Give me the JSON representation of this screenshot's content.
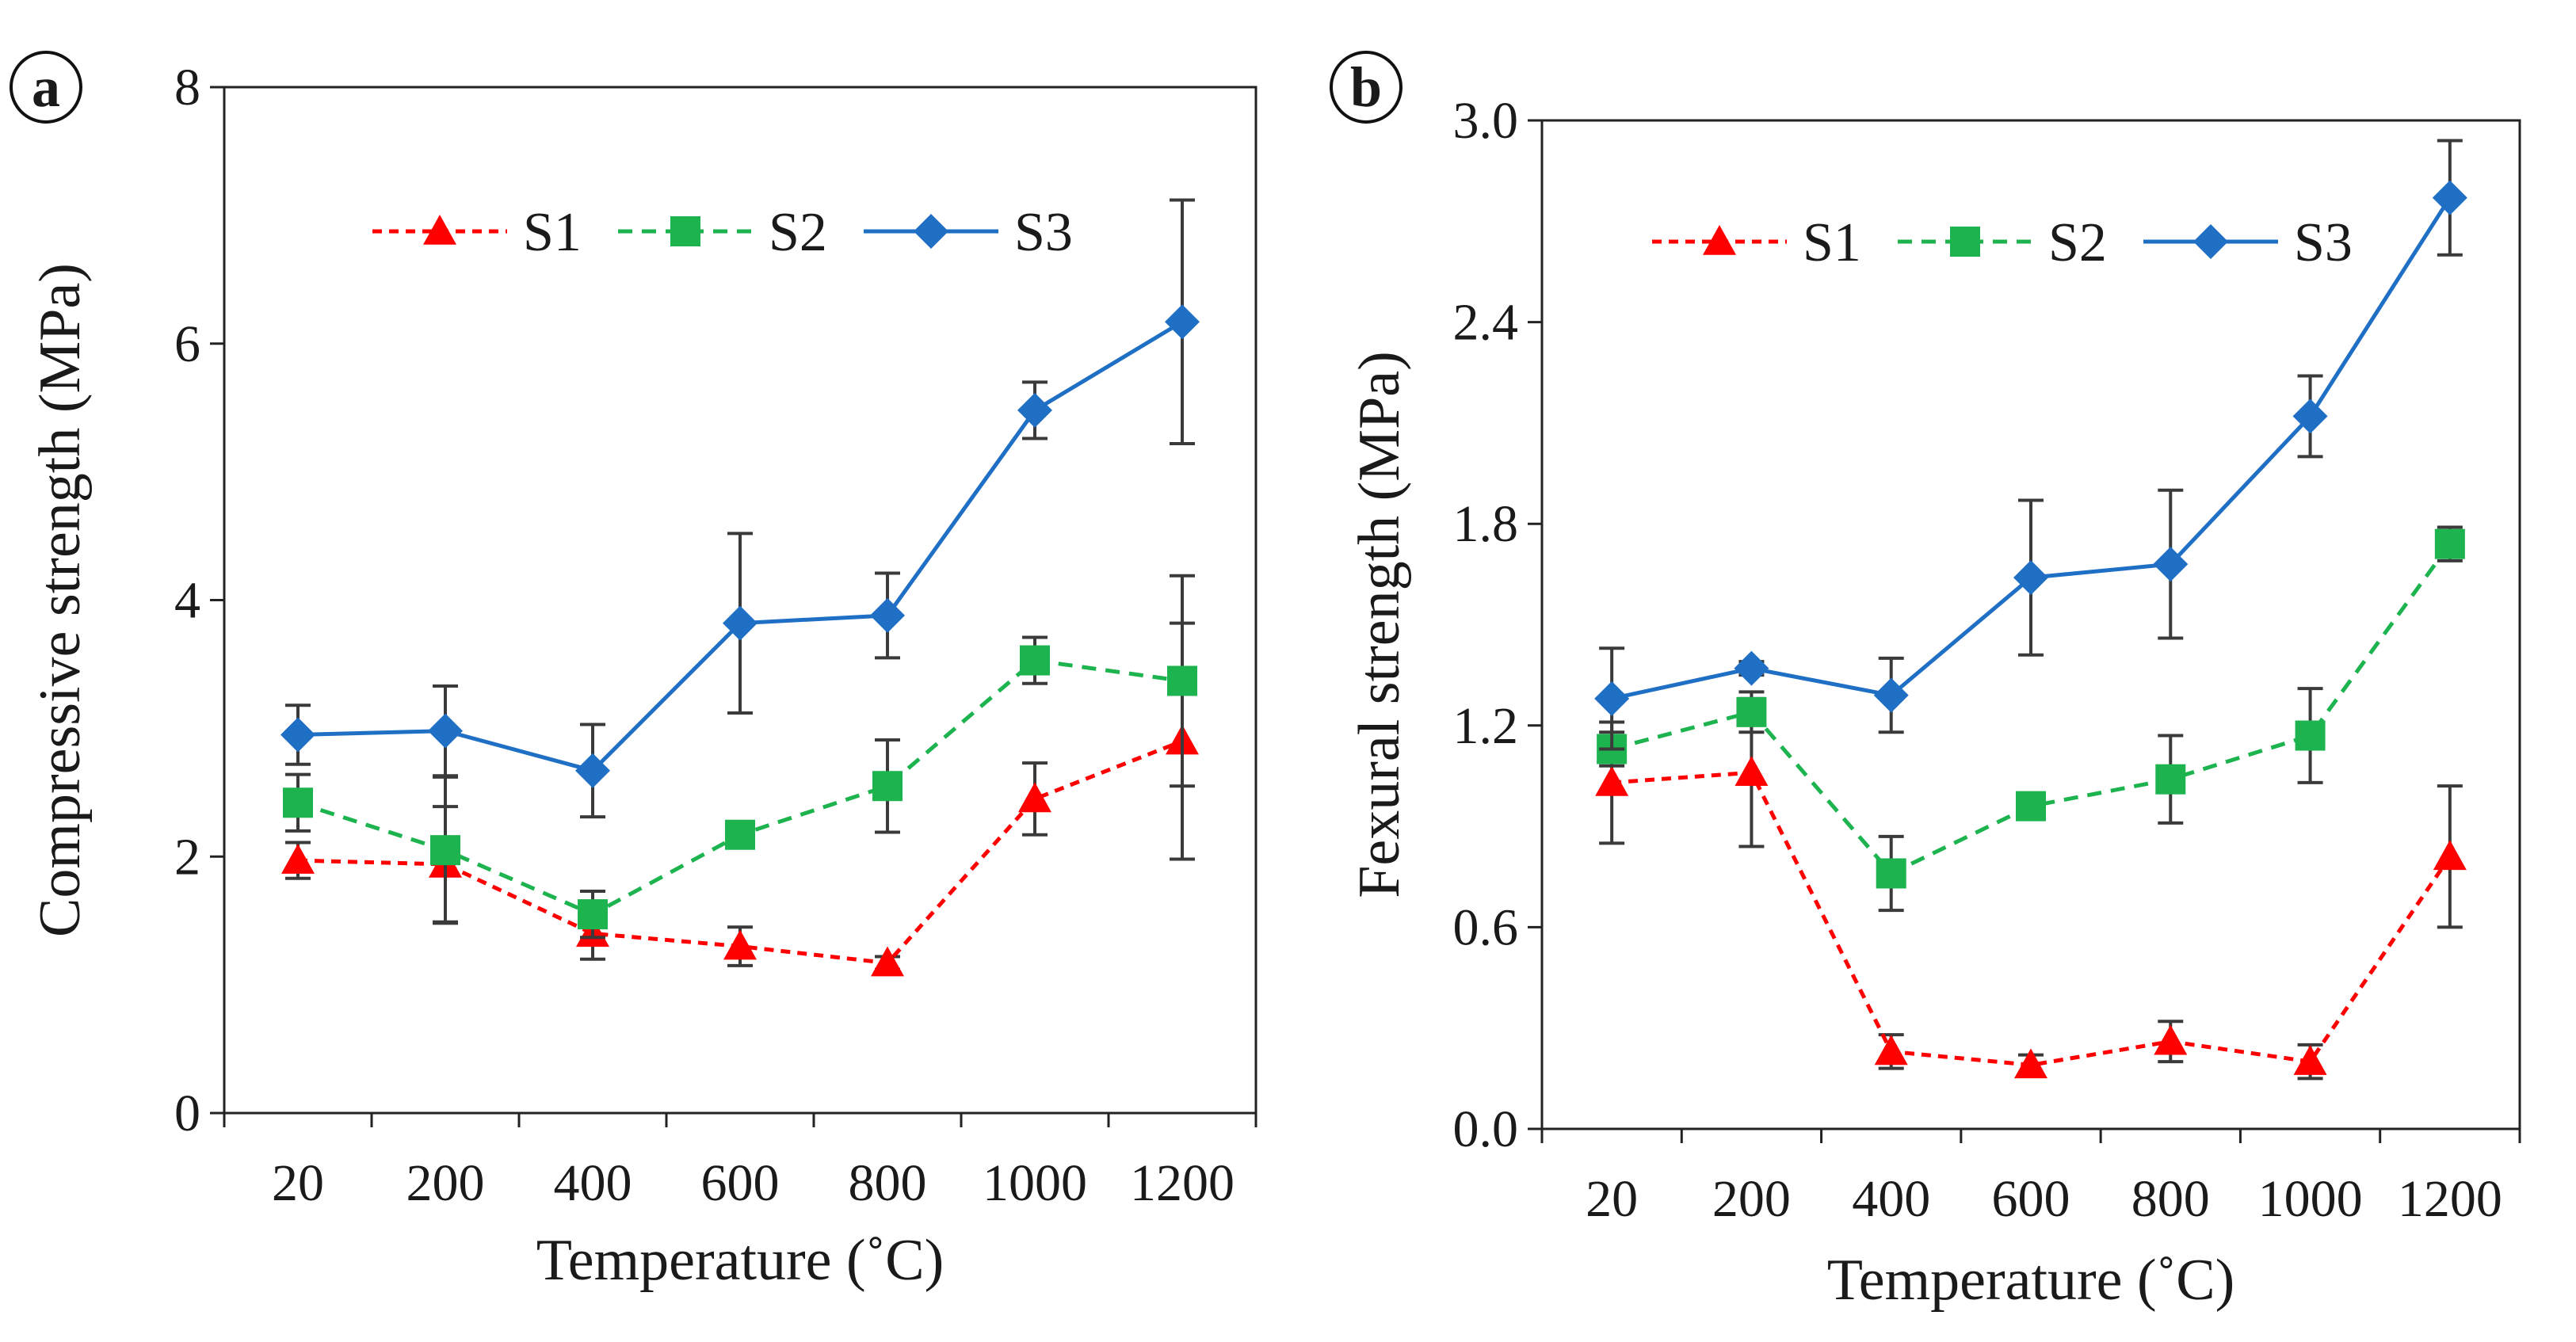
{
  "chart_data": [
    {
      "panel": "a",
      "type": "line",
      "xlabel": "Temperature (˚C)",
      "ylabel": "Compressive strength (MPa)",
      "categories": [
        "20",
        "200",
        "400",
        "600",
        "800",
        "1000",
        "1200"
      ],
      "ylim": [
        0,
        8
      ],
      "yticks": [
        "0",
        "2",
        "4",
        "6",
        "8"
      ],
      "grid": false,
      "legend_position": "top-center",
      "series": [
        {
          "name": "S1",
          "color": "#ff0000",
          "marker": "triangle",
          "style": "dashed",
          "values": [
            1.97,
            1.94,
            1.4,
            1.3,
            1.17,
            2.45,
            2.9
          ],
          "errors": [
            0.14,
            0.45,
            0.2,
            0.15,
            0.05,
            0.28,
            0.92
          ]
        },
        {
          "name": "S2",
          "color": "#1db34f",
          "marker": "square",
          "style": "dashed",
          "values": [
            2.42,
            2.05,
            1.55,
            2.17,
            2.55,
            3.53,
            3.37
          ],
          "errors": [
            0.22,
            0.57,
            0.18,
            0.1,
            0.36,
            0.18,
            0.82
          ]
        },
        {
          "name": "S3",
          "color": "#1f6fc5",
          "marker": "diamond",
          "style": "solid",
          "values": [
            2.95,
            2.98,
            2.67,
            3.82,
            3.88,
            5.48,
            6.17
          ],
          "errors": [
            0.23,
            0.35,
            0.36,
            0.7,
            0.33,
            0.22,
            0.95
          ]
        }
      ]
    },
    {
      "panel": "b",
      "type": "line",
      "xlabel": "Temperature (˚C)",
      "ylabel": "Fexural strength (MPa)",
      "categories": [
        "20",
        "200",
        "400",
        "600",
        "800",
        "1000",
        "1200"
      ],
      "ylim": [
        0,
        3.0
      ],
      "yticks": [
        "0.0",
        "0.6",
        "1.2",
        "1.8",
        "2.4",
        "3.0"
      ],
      "grid": false,
      "legend_position": "top-center",
      "series": [
        {
          "name": "S1",
          "color": "#ff0000",
          "marker": "triangle",
          "style": "dashed",
          "values": [
            1.03,
            1.06,
            0.23,
            0.19,
            0.26,
            0.2,
            0.81
          ],
          "errors": [
            0.18,
            0.22,
            0.05,
            0.03,
            0.06,
            0.05,
            0.21
          ]
        },
        {
          "name": "S2",
          "color": "#1db34f",
          "marker": "square",
          "style": "dashed",
          "values": [
            1.13,
            1.24,
            0.76,
            0.96,
            1.04,
            1.17,
            1.74
          ],
          "errors": [
            0.05,
            0.06,
            0.11,
            0.02,
            0.13,
            0.14,
            0.05
          ]
        },
        {
          "name": "S3",
          "color": "#1f6fc5",
          "marker": "diamond",
          "style": "solid",
          "values": [
            1.28,
            1.37,
            1.29,
            1.64,
            1.68,
            2.12,
            2.77
          ],
          "errors": [
            0.15,
            0.02,
            0.11,
            0.23,
            0.22,
            0.12,
            0.17
          ]
        }
      ]
    }
  ]
}
